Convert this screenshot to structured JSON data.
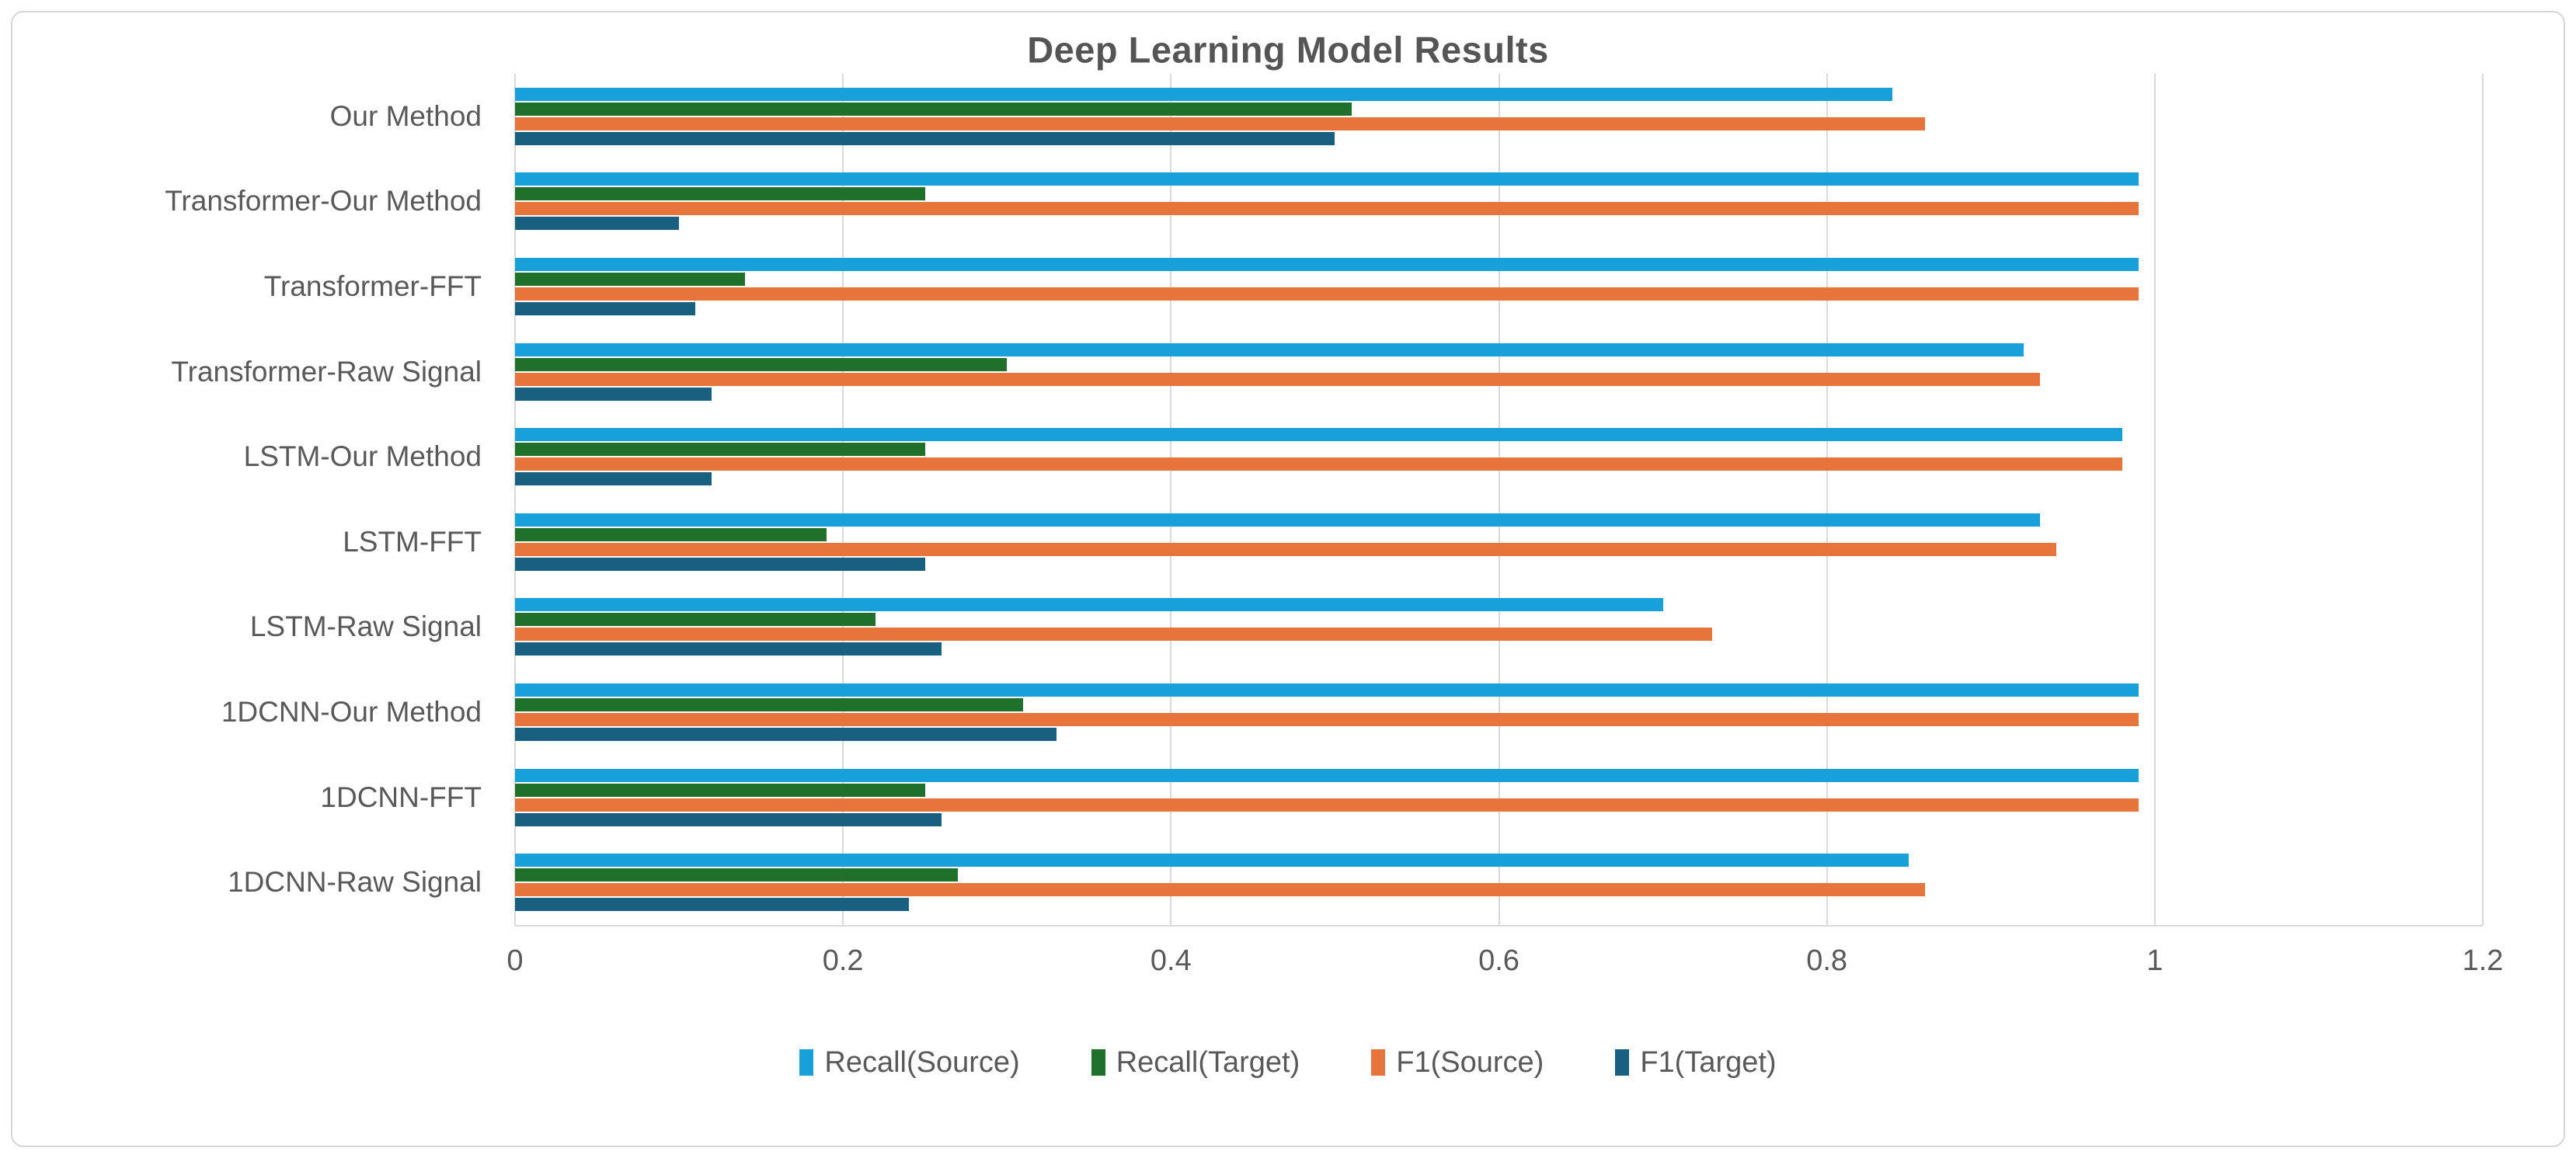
{
  "chart_data": {
    "type": "bar",
    "orientation": "horizontal",
    "title": "Deep Learning Model Results",
    "categories": [
      "Our Method",
      "Transformer-Our Method",
      "Transformer-FFT",
      "Transformer-Raw Signal",
      "LSTM-Our Method",
      "LSTM-FFT",
      "LSTM-Raw Signal",
      "1DCNN-Our Method",
      "1DCNN-FFT",
      "1DCNN-Raw Signal"
    ],
    "series": [
      {
        "name": "Recall(Source)",
        "color": "#18A0DA",
        "values": [
          0.84,
          0.99,
          0.99,
          0.92,
          0.98,
          0.93,
          0.7,
          0.99,
          0.99,
          0.85
        ]
      },
      {
        "name": "Recall(Target)",
        "color": "#1E702B",
        "values": [
          0.51,
          0.25,
          0.14,
          0.3,
          0.25,
          0.19,
          0.22,
          0.31,
          0.25,
          0.27
        ]
      },
      {
        "name": "F1(Source)",
        "color": "#E7743B",
        "values": [
          0.86,
          0.99,
          0.99,
          0.93,
          0.98,
          0.94,
          0.73,
          0.99,
          0.99,
          0.86
        ]
      },
      {
        "name": "F1(Target)",
        "color": "#185F80",
        "values": [
          0.5,
          0.1,
          0.11,
          0.12,
          0.12,
          0.25,
          0.26,
          0.33,
          0.26,
          0.24
        ]
      }
    ],
    "x_axis": {
      "min": 0,
      "max": 1.2,
      "tick_interval": 0.2,
      "tick_labels": [
        "0",
        "0.2",
        "0.4",
        "0.6",
        "0.8",
        "1",
        "1.2"
      ]
    },
    "grid": true,
    "legend_position": "bottom",
    "colors": {
      "text": "#595959",
      "gridline": "#d9d9d9",
      "frame_border": "#d6d6d6",
      "background": "#ffffff"
    }
  }
}
